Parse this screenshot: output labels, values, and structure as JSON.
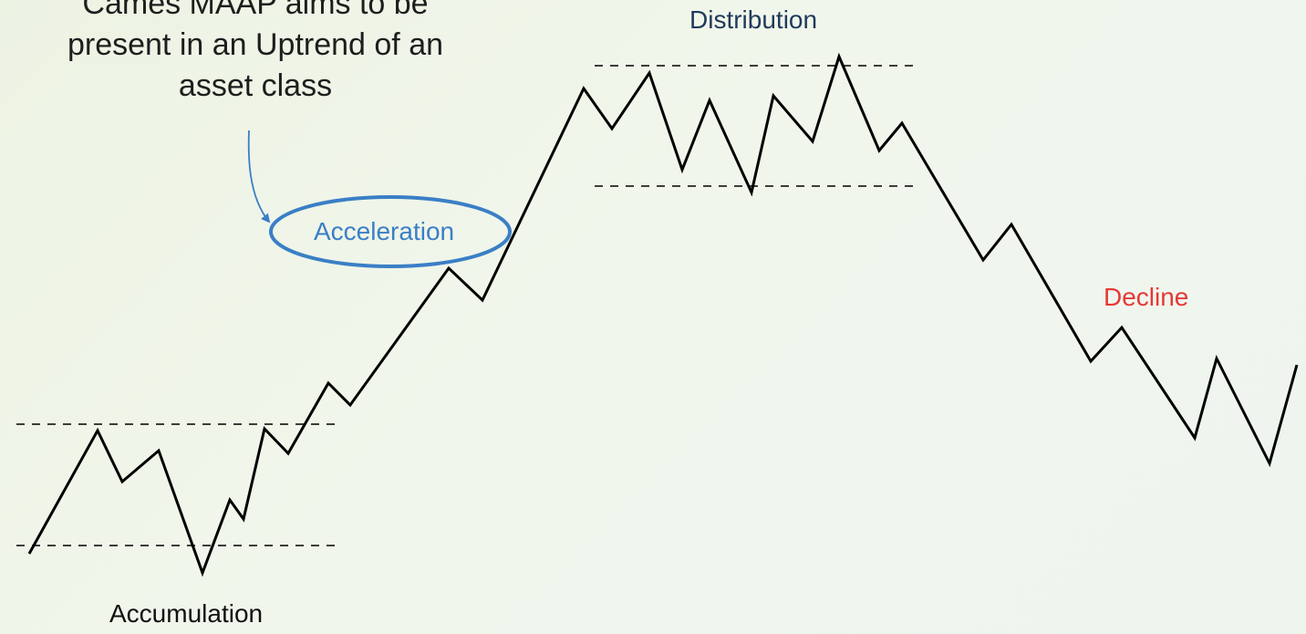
{
  "headline": {
    "lines": [
      "Cames MAAP aims to be",
      "present in an Uptrend of an",
      "asset class"
    ]
  },
  "phases": {
    "accumulation": "Accumulation",
    "acceleration": "Acceleration",
    "distribution": "Distribution",
    "decline": "Decline"
  },
  "colors": {
    "price_line": "#000000",
    "headline_text": "#1e1e1e",
    "accumulation_text": "#111111",
    "acceleration_text": "#3a7fc6",
    "acceleration_ring": "#3a7fc6",
    "distribution_text": "#1f3a5a",
    "decline_text": "#e53935",
    "range_dashes": "#000000"
  },
  "icons": {
    "pointer": "curved-arrow-icon",
    "highlight": "ellipse-highlight-icon"
  }
}
